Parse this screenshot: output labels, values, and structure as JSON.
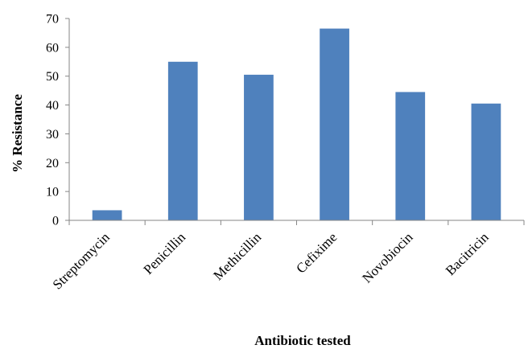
{
  "chart_data": {
    "type": "bar",
    "title": "",
    "xlabel": "Antibiotic tested",
    "ylabel": "% Resistance",
    "categories": [
      "Streptomycin",
      "Penicillin",
      "Methicillin",
      "Cefixime",
      "Novobiocin",
      "Bacitricin"
    ],
    "values": [
      3.5,
      55,
      50.5,
      66.5,
      44.5,
      40.5
    ],
    "ylim": [
      0,
      70
    ],
    "yticks": [
      "0",
      "10",
      "20",
      "30",
      "40",
      "50",
      "60",
      "70"
    ],
    "grid": false,
    "legend": "none",
    "bar_color": "#4f81bd"
  }
}
